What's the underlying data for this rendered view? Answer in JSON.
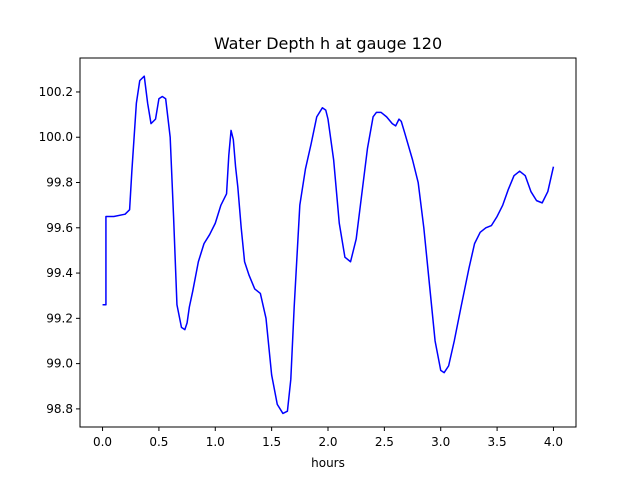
{
  "chart_data": {
    "type": "line",
    "title": "Water Depth h at gauge 120",
    "xlabel": "hours",
    "ylabel": "",
    "xlim": [
      -0.2,
      4.2
    ],
    "ylim": [
      98.72,
      100.35
    ],
    "xticks": [
      0.0,
      0.5,
      1.0,
      1.5,
      2.0,
      2.5,
      3.0,
      3.5,
      4.0
    ],
    "xtick_labels": [
      "0.0",
      "0.5",
      "1.0",
      "1.5",
      "2.0",
      "2.5",
      "3.0",
      "3.5",
      "4.0"
    ],
    "yticks": [
      98.8,
      99.0,
      99.2,
      99.4,
      99.6,
      99.8,
      100.0,
      100.2
    ],
    "ytick_labels": [
      "98.8",
      "99.0",
      "99.2",
      "99.4",
      "99.6",
      "99.8",
      "100.0",
      "100.2"
    ],
    "grid": false,
    "series": [
      {
        "color": "#0000ff",
        "x": [
          0.0,
          0.03,
          0.03,
          0.1,
          0.2,
          0.24,
          0.26,
          0.3,
          0.33,
          0.37,
          0.4,
          0.43,
          0.47,
          0.5,
          0.53,
          0.56,
          0.6,
          0.63,
          0.66,
          0.7,
          0.73,
          0.75,
          0.77,
          0.8,
          0.85,
          0.9,
          0.95,
          1.0,
          1.05,
          1.1,
          1.12,
          1.14,
          1.16,
          1.18,
          1.2,
          1.23,
          1.26,
          1.3,
          1.35,
          1.4,
          1.45,
          1.5,
          1.55,
          1.6,
          1.64,
          1.67,
          1.7,
          1.75,
          1.8,
          1.85,
          1.9,
          1.95,
          1.98,
          2.0,
          2.05,
          2.1,
          2.15,
          2.2,
          2.25,
          2.3,
          2.35,
          2.4,
          2.43,
          2.47,
          2.52,
          2.57,
          2.6,
          2.63,
          2.65,
          2.68,
          2.75,
          2.8,
          2.85,
          2.9,
          2.95,
          3.0,
          3.03,
          3.07,
          3.12,
          3.18,
          3.25,
          3.3,
          3.35,
          3.4,
          3.45,
          3.5,
          3.55,
          3.6,
          3.65,
          3.7,
          3.75,
          3.8,
          3.85,
          3.9,
          3.95,
          4.0
        ],
        "y": [
          99.26,
          99.26,
          99.65,
          99.65,
          99.66,
          99.68,
          99.85,
          100.15,
          100.25,
          100.27,
          100.15,
          100.06,
          100.08,
          100.17,
          100.18,
          100.17,
          100.0,
          99.65,
          99.26,
          99.16,
          99.15,
          99.18,
          99.25,
          99.32,
          99.45,
          99.53,
          99.57,
          99.62,
          99.7,
          99.75,
          99.92,
          100.03,
          99.99,
          99.87,
          99.78,
          99.6,
          99.45,
          99.39,
          99.33,
          99.31,
          99.2,
          98.95,
          98.82,
          98.78,
          98.79,
          98.93,
          99.25,
          99.7,
          99.86,
          99.97,
          100.09,
          100.13,
          100.12,
          100.08,
          99.9,
          99.62,
          99.47,
          99.45,
          99.55,
          99.75,
          99.95,
          100.09,
          100.11,
          100.11,
          100.09,
          100.06,
          100.05,
          100.08,
          100.07,
          100.02,
          99.9,
          99.8,
          99.6,
          99.35,
          99.1,
          98.97,
          98.96,
          98.99,
          99.1,
          99.25,
          99.42,
          99.53,
          99.58,
          99.6,
          99.61,
          99.65,
          99.7,
          99.77,
          99.83,
          99.85,
          99.83,
          99.76,
          99.72,
          99.71,
          99.76,
          99.87
        ]
      }
    ]
  }
}
